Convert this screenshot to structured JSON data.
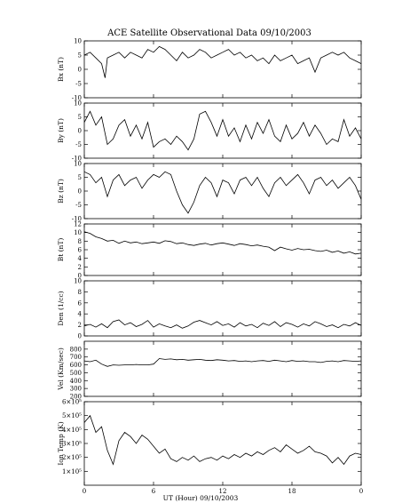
{
  "chart_data": {
    "type": "line",
    "title": "ACE Satellite Observational Data  09/10/2003",
    "xlabel": "UT (Hour)  09/10/2003",
    "x_ticks": [
      "0",
      "6",
      "12",
      "18",
      "0"
    ],
    "xlim": [
      0,
      24
    ],
    "grid": false,
    "panels": [
      {
        "key": "bx",
        "ylabel": "Bx (nT)",
        "ylim": [
          -10,
          10
        ],
        "yticks": [
          "-10",
          "-5",
          "0",
          "5",
          "10"
        ],
        "ytick_values": [
          -10,
          -5,
          0,
          5,
          10
        ],
        "series": [
          {
            "x": [
              0,
              0.5,
              1,
              1.5,
              1.8,
              2,
              2.5,
              3,
              3.5,
              4,
              4.5,
              5,
              5.5,
              6,
              6.5,
              7,
              7.5,
              8,
              8.5,
              9,
              9.5,
              10,
              10.5,
              11,
              11.5,
              12,
              12.5,
              13,
              13.5,
              14,
              14.5,
              15,
              15.5,
              16,
              16.5,
              17,
              17.5,
              18,
              18.5,
              19,
              19.5,
              20,
              20.5,
              21,
              21.5,
              22,
              22.5,
              23,
              23.5,
              24
            ],
            "values": [
              5,
              6,
              4,
              2,
              -3,
              4,
              5,
              6,
              4,
              6,
              5,
              4,
              7,
              6,
              8,
              7,
              5,
              3,
              6,
              4,
              5,
              7,
              6,
              4,
              5,
              6,
              7,
              5,
              6,
              4,
              5,
              3,
              4,
              2,
              5,
              3,
              4,
              5,
              2,
              3,
              4,
              -1,
              4,
              5,
              6,
              5,
              6,
              4,
              3,
              2
            ]
          }
        ]
      },
      {
        "key": "by",
        "ylabel": "By (nT)",
        "ylim": [
          -10,
          10
        ],
        "yticks": [
          "-10",
          "-5",
          "0",
          "5",
          "10"
        ],
        "ytick_values": [
          -10,
          -5,
          0,
          5,
          10
        ],
        "series": [
          {
            "x": [
              0,
              0.5,
              1,
              1.5,
              2,
              2.5,
              3,
              3.5,
              4,
              4.5,
              5,
              5.5,
              6,
              6.5,
              7,
              7.5,
              8,
              8.5,
              9,
              9.5,
              10,
              10.5,
              11,
              11.5,
              12,
              12.5,
              13,
              13.5,
              14,
              14.5,
              15,
              15.5,
              16,
              16.5,
              17,
              17.5,
              18,
              18.5,
              19,
              19.5,
              20,
              20.5,
              21,
              21.5,
              22,
              22.5,
              23,
              23.5,
              24
            ],
            "values": [
              3,
              7,
              2,
              5,
              -5,
              -3,
              2,
              4,
              -2,
              2,
              -3,
              3,
              -6,
              -4,
              -3,
              -5,
              -2,
              -4,
              -7,
              -3,
              6,
              7,
              3,
              -2,
              4,
              -2,
              1,
              -4,
              2,
              -3,
              3,
              -1,
              4,
              -2,
              -4,
              2,
              -3,
              -1,
              3,
              -2,
              2,
              -1,
              -5,
              -3,
              -4,
              4,
              -2,
              1,
              -3
            ]
          }
        ]
      },
      {
        "key": "bz",
        "ylabel": "Bz (nT)",
        "ylim": [
          -10,
          10
        ],
        "yticks": [
          "-10",
          "-5",
          "0",
          "5",
          "10"
        ],
        "ytick_values": [
          -10,
          -5,
          0,
          5,
          10
        ],
        "series": [
          {
            "x": [
              0,
              0.5,
              1,
              1.5,
              2,
              2.5,
              3,
              3.5,
              4,
              4.5,
              5,
              5.5,
              6,
              6.5,
              7,
              7.5,
              8,
              8.5,
              9,
              9.5,
              10,
              10.5,
              11,
              11.5,
              12,
              12.5,
              13,
              13.5,
              14,
              14.5,
              15,
              15.5,
              16,
              16.5,
              17,
              17.5,
              18,
              18.5,
              19,
              19.5,
              20,
              20.5,
              21,
              21.5,
              22,
              22.5,
              23,
              23.5,
              24
            ],
            "values": [
              7,
              6,
              3,
              5,
              -2,
              4,
              6,
              2,
              4,
              5,
              1,
              4,
              6,
              5,
              7,
              6,
              0,
              -5,
              -8,
              -4,
              2,
              5,
              3,
              -2,
              4,
              3,
              -1,
              4,
              5,
              2,
              5,
              1,
              -2,
              3,
              5,
              2,
              4,
              6,
              3,
              -1,
              4,
              5,
              2,
              4,
              1,
              3,
              5,
              2,
              -3
            ]
          }
        ]
      },
      {
        "key": "bt",
        "ylabel": "Bt (nT)",
        "ylim": [
          0,
          12
        ],
        "yticks": [
          "0",
          "2",
          "4",
          "6",
          "8",
          "10",
          "12"
        ],
        "ytick_values": [
          0,
          2,
          4,
          6,
          8,
          10,
          12
        ],
        "series": [
          {
            "x": [
              0,
              0.5,
              1,
              1.5,
              2,
              2.5,
              3,
              3.5,
              4,
              4.5,
              5,
              5.5,
              6,
              6.5,
              7,
              7.5,
              8,
              8.5,
              9,
              9.5,
              10,
              10.5,
              11,
              11.5,
              12,
              12.5,
              13,
              13.5,
              14,
              14.5,
              15,
              15.5,
              16,
              16.5,
              17,
              17.5,
              18,
              18.5,
              19,
              19.5,
              20,
              20.5,
              21,
              21.5,
              22,
              22.5,
              23,
              23.5,
              24
            ],
            "values": [
              10.2,
              9.8,
              9.0,
              8.6,
              8.0,
              8.2,
              7.5,
              8.0,
              7.6,
              7.8,
              7.4,
              7.6,
              7.8,
              7.5,
              8.1,
              7.9,
              7.4,
              7.6,
              7.2,
              7.0,
              7.3,
              7.5,
              7.1,
              7.4,
              7.6,
              7.3,
              7.0,
              7.4,
              7.2,
              6.9,
              7.1,
              6.8,
              6.6,
              5.8,
              6.6,
              6.2,
              5.9,
              6.3,
              6.0,
              6.1,
              5.8,
              5.6,
              5.9,
              5.4,
              5.7,
              5.2,
              5.5,
              5.0,
              5.2
            ]
          }
        ]
      },
      {
        "key": "den",
        "ylabel": "Den (1/cc)",
        "ylim": [
          0,
          10
        ],
        "yticks": [
          "0",
          "2",
          "4",
          "6",
          "8",
          "10"
        ],
        "ytick_values": [
          0,
          2,
          4,
          6,
          8,
          10
        ],
        "series": [
          {
            "x": [
              0,
              0.5,
              1,
              1.5,
              2,
              2.5,
              3,
              3.5,
              4,
              4.5,
              5,
              5.5,
              6,
              6.5,
              7,
              7.5,
              8,
              8.5,
              9,
              9.5,
              10,
              10.5,
              11,
              11.5,
              12,
              12.5,
              13,
              13.5,
              14,
              14.5,
              15,
              15.5,
              16,
              16.5,
              17,
              17.5,
              18,
              18.5,
              19,
              19.5,
              20,
              20.5,
              21,
              21.5,
              22,
              22.5,
              23,
              23.5,
              24
            ],
            "values": [
              1.8,
              2.1,
              1.6,
              2.2,
              1.5,
              2.6,
              2.9,
              2.0,
              2.4,
              1.7,
              2.1,
              2.8,
              1.6,
              2.2,
              1.8,
              1.5,
              2.0,
              1.4,
              1.8,
              2.5,
              2.8,
              2.4,
              2.0,
              2.6,
              1.9,
              2.2,
              1.6,
              2.4,
              1.8,
              2.1,
              1.5,
              2.3,
              1.9,
              2.6,
              1.7,
              2.4,
              2.1,
              1.6,
              2.2,
              1.8,
              2.6,
              2.2,
              1.7,
              2.0,
              1.5,
              2.1,
              1.8,
              2.4,
              1.9
            ]
          }
        ]
      },
      {
        "key": "vel",
        "ylabel": "Vel (Km/sec)",
        "ylim": [
          200,
          900
        ],
        "yticks": [
          "200",
          "300",
          "400",
          "500",
          "600",
          "700",
          "800"
        ],
        "ytick_values": [
          200,
          300,
          400,
          500,
          600,
          700,
          800
        ],
        "series": [
          {
            "x": [
              0,
              0.5,
              1,
              1.5,
              2,
              2.5,
              3,
              3.5,
              4,
              4.5,
              5,
              5.5,
              6,
              6.5,
              7,
              7.5,
              8,
              8.5,
              9,
              9.5,
              10,
              10.5,
              11,
              11.5,
              12,
              12.5,
              13,
              13.5,
              14,
              14.5,
              15,
              15.5,
              16,
              16.5,
              17,
              17.5,
              18,
              18.5,
              19,
              19.5,
              20,
              20.5,
              21,
              21.5,
              22,
              22.5,
              23,
              23.5,
              24
            ],
            "values": [
              650,
              640,
              660,
              610,
              580,
              600,
              595,
              600,
              600,
              605,
              600,
              600,
              610,
              680,
              670,
              675,
              665,
              670,
              660,
              665,
              670,
              660,
              655,
              665,
              660,
              650,
              655,
              645,
              650,
              640,
              650,
              655,
              645,
              660,
              650,
              640,
              655,
              645,
              650,
              640,
              640,
              630,
              645,
              650,
              640,
              655,
              650,
              645,
              650
            ]
          }
        ]
      },
      {
        "key": "temp",
        "ylabel": "Ion Temp (K)",
        "ylim": [
          0,
          600000
        ],
        "yticks": [
          "1×10⁵",
          "2×10⁵",
          "3×10⁵",
          "4×10⁵",
          "5×10⁵",
          "6×10⁵"
        ],
        "ytick_values": [
          100000,
          200000,
          300000,
          400000,
          500000,
          600000
        ],
        "series": [
          {
            "x": [
              0,
              0.5,
              1,
              1.5,
              2,
              2.5,
              3,
              3.5,
              4,
              4.5,
              5,
              5.5,
              6,
              6.5,
              7,
              7.5,
              8,
              8.5,
              9,
              9.5,
              10,
              10.5,
              11,
              11.5,
              12,
              12.5,
              13,
              13.5,
              14,
              14.5,
              15,
              15.5,
              16,
              16.5,
              17,
              17.5,
              18,
              18.5,
              19,
              19.5,
              20,
              20.5,
              21,
              21.5,
              22,
              22.5,
              23,
              23.5,
              24
            ],
            "values": [
              450000,
              500000,
              380000,
              420000,
              250000,
              150000,
              320000,
              380000,
              350000,
              300000,
              360000,
              330000,
              280000,
              230000,
              260000,
              190000,
              170000,
              200000,
              180000,
              210000,
              170000,
              190000,
              200000,
              180000,
              210000,
              190000,
              220000,
              200000,
              230000,
              210000,
              240000,
              220000,
              250000,
              270000,
              240000,
              290000,
              260000,
              230000,
              250000,
              280000,
              240000,
              230000,
              210000,
              160000,
              200000,
              150000,
              210000,
              230000,
              220000
            ]
          }
        ]
      }
    ]
  }
}
